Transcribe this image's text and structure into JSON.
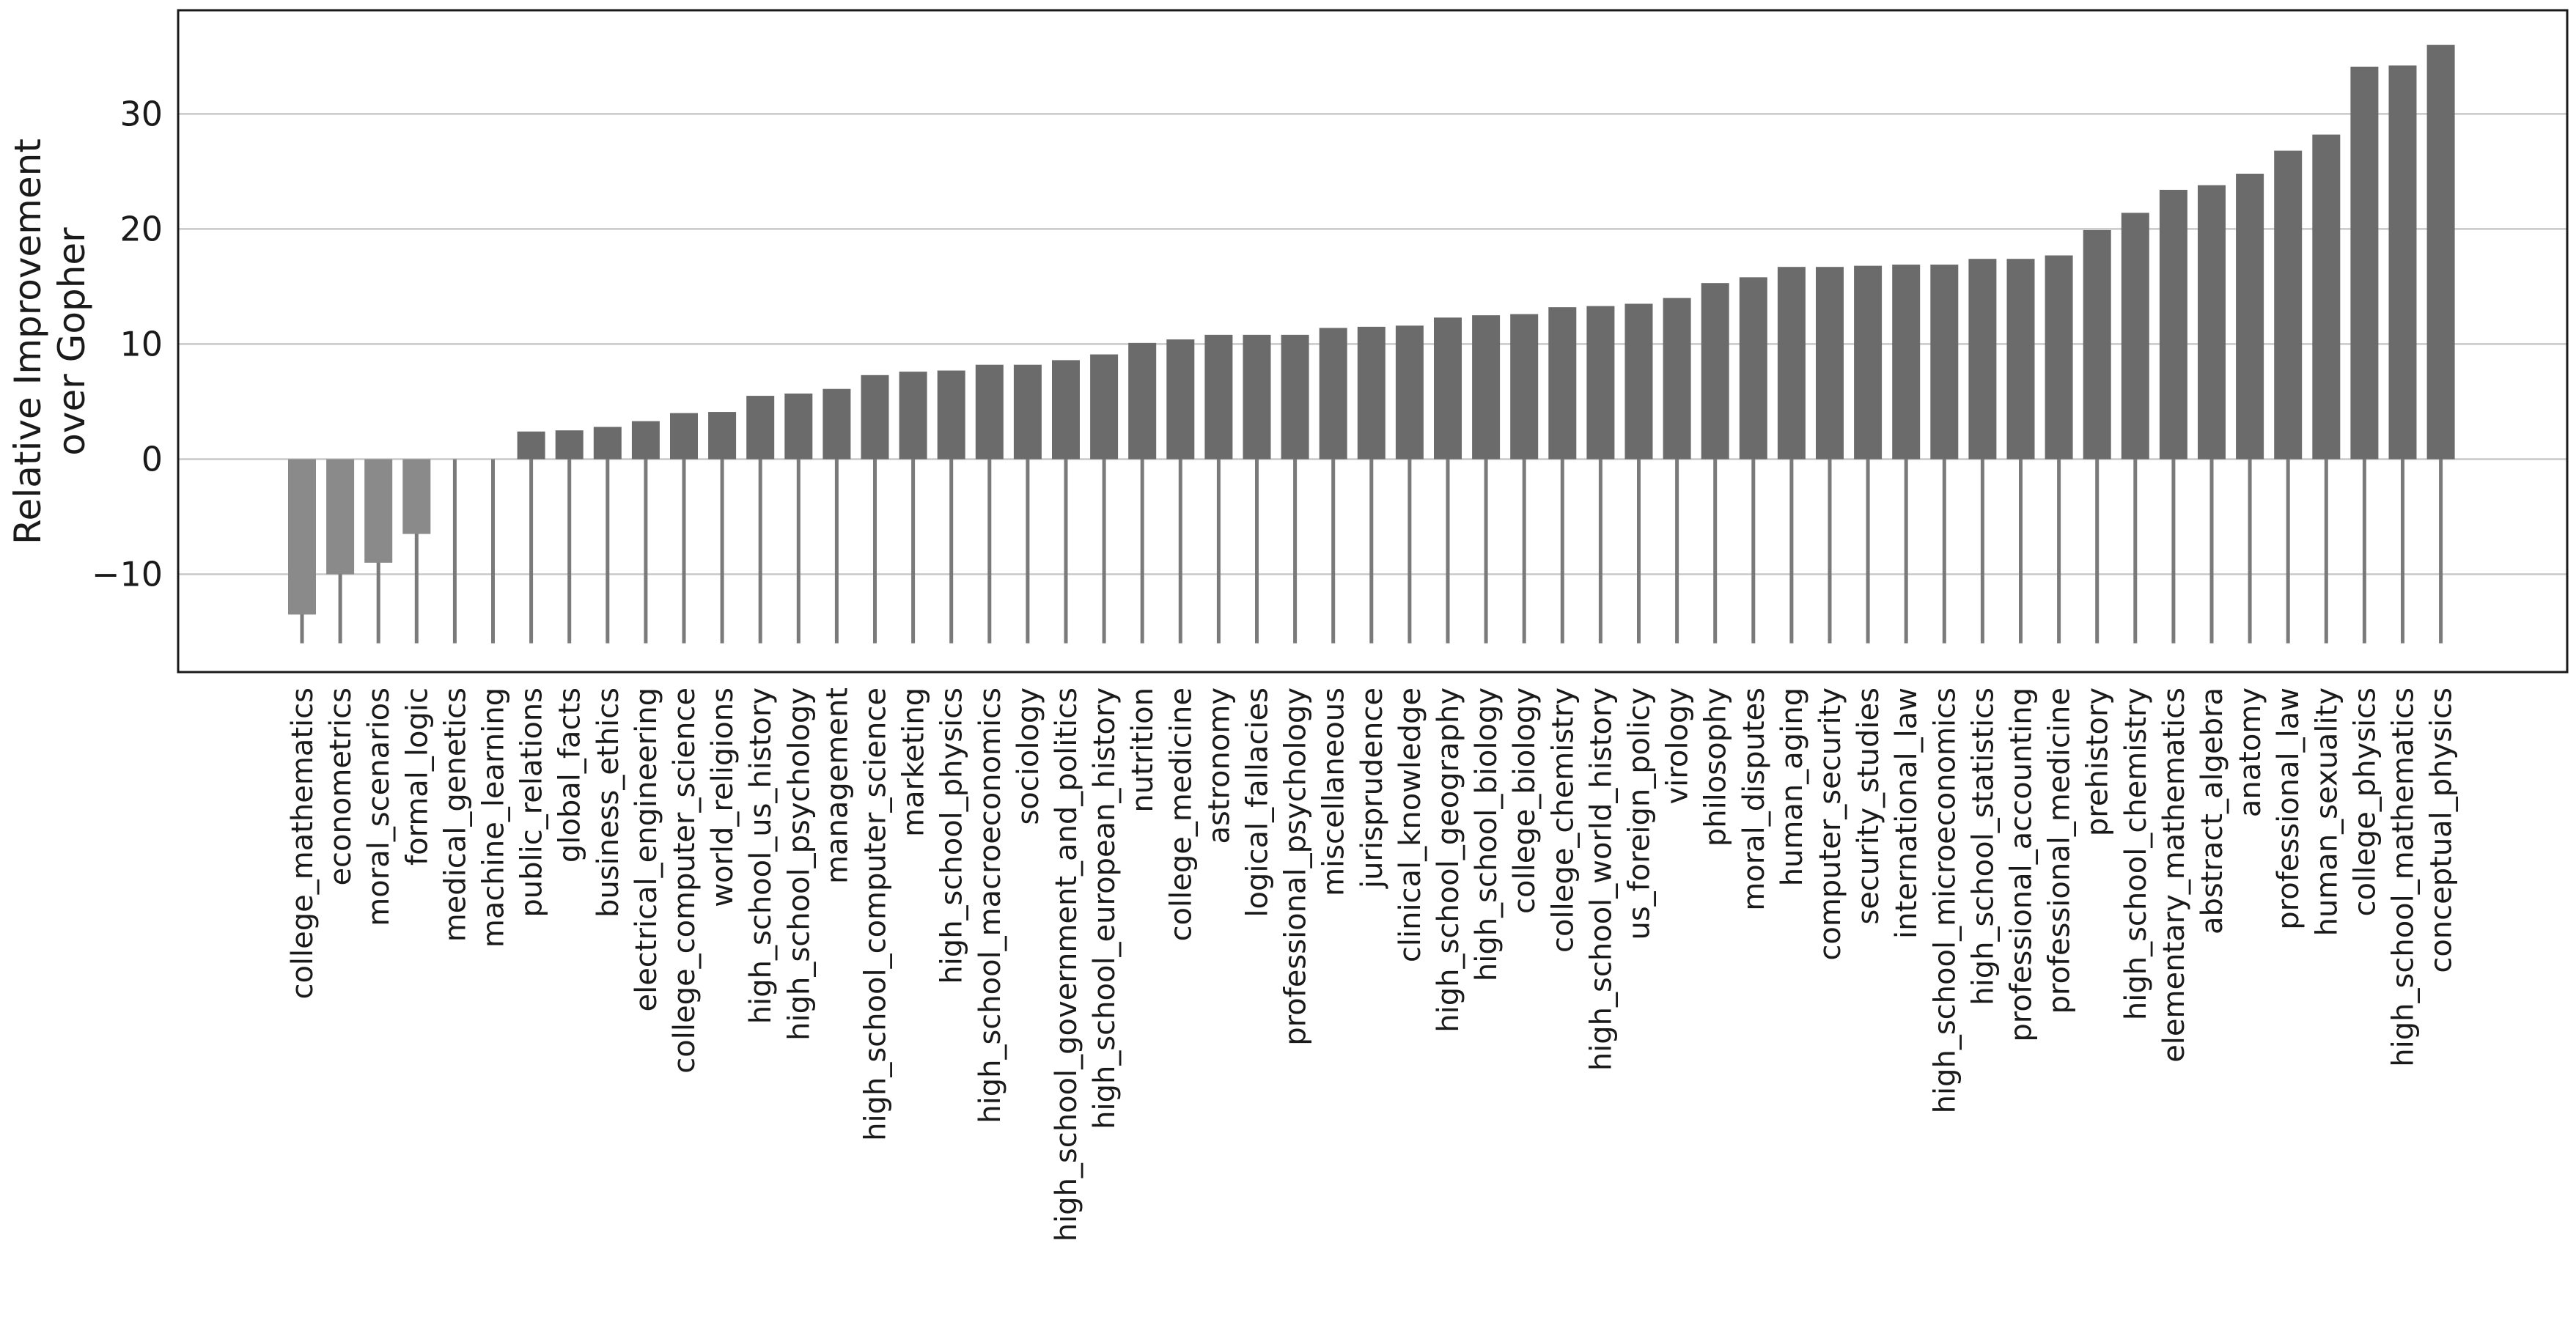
{
  "chart_data": {
    "type": "bar",
    "title": "",
    "xlabel": "",
    "ylabel_lines": [
      "Relative Improvement",
      "over Gopher"
    ],
    "ylim": [
      -18.5,
      39
    ],
    "yticks": [
      -10,
      0,
      10,
      20,
      30
    ],
    "ytick_labels": [
      "−10",
      "0",
      "10",
      "20",
      "30"
    ],
    "grid": "horizontal",
    "colors": {
      "positive_bar": "#6b6b6b",
      "negative_bar": "#8a8a8a",
      "stem": "#7a7a7a",
      "grid": "#c8c8c8",
      "frame": "#1a1a1a"
    },
    "categories": [
      "college_mathematics",
      "econometrics",
      "moral_scenarios",
      "formal_logic",
      "medical_genetics",
      "machine_learning",
      "public_relations",
      "global_facts",
      "business_ethics",
      "electrical_engineering",
      "college_computer_science",
      "world_religions",
      "high_school_us_history",
      "high_school_psychology",
      "management",
      "high_school_computer_science",
      "marketing",
      "high_school_physics",
      "high_school_macroeconomics",
      "sociology",
      "high_school_government_and_politics",
      "high_school_european_history",
      "nutrition",
      "college_medicine",
      "astronomy",
      "logical_fallacies",
      "professional_psychology",
      "miscellaneous",
      "jurisprudence",
      "clinical_knowledge",
      "high_school_geography",
      "high_school_biology",
      "college_biology",
      "college_chemistry",
      "high_school_world_history",
      "us_foreign_policy",
      "virology",
      "philosophy",
      "moral_disputes",
      "human_aging",
      "computer_security",
      "security_studies",
      "international_law",
      "high_school_microeconomics",
      "high_school_statistics",
      "professional_accounting",
      "professional_medicine",
      "prehistory",
      "high_school_chemistry",
      "elementary_mathematics",
      "abstract_algebra",
      "anatomy",
      "professional_law",
      "human_sexuality",
      "college_physics",
      "high_school_mathematics",
      "conceptual_physics"
    ],
    "values": [
      -13.5,
      -10.0,
      -9.0,
      -6.5,
      0.0,
      0.0,
      2.4,
      2.5,
      2.8,
      3.3,
      4.0,
      4.1,
      5.5,
      5.7,
      6.1,
      7.3,
      7.6,
      7.7,
      8.2,
      8.2,
      8.6,
      9.1,
      10.1,
      10.4,
      10.8,
      10.8,
      10.8,
      11.4,
      11.5,
      11.6,
      12.3,
      12.5,
      12.6,
      13.2,
      13.3,
      13.5,
      14.0,
      15.3,
      15.8,
      16.7,
      16.7,
      16.8,
      16.9,
      16.9,
      17.4,
      17.4,
      17.7,
      19.9,
      21.4,
      23.4,
      23.8,
      24.8,
      26.8,
      28.2,
      34.1,
      34.2,
      36.0
    ]
  }
}
